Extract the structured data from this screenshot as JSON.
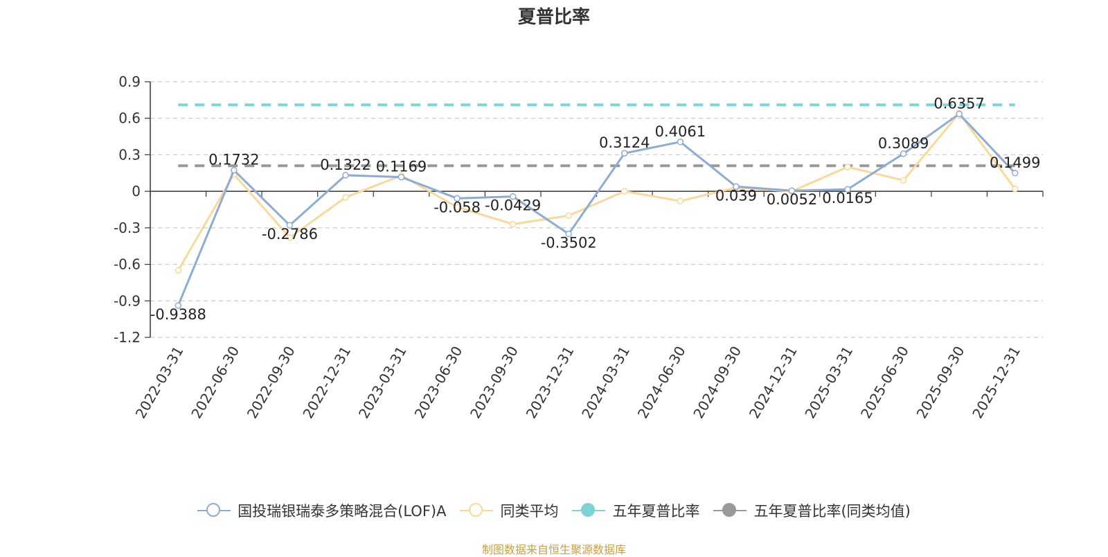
{
  "chart_data": {
    "type": "line",
    "title": "夏普比率",
    "categories": [
      "2022-03-31",
      "2022-06-30",
      "2022-09-30",
      "2022-12-31",
      "2023-03-31",
      "2023-06-30",
      "2023-09-30",
      "2023-12-31",
      "2024-03-31",
      "2024-06-30",
      "2024-09-30",
      "2024-12-31",
      "2025-03-31",
      "2025-06-30",
      "2025-09-30",
      "2025-12-31"
    ],
    "ylim": [
      -1.2,
      0.9
    ],
    "yticks": [
      0.9,
      0.6,
      0.3,
      0,
      -0.3,
      -0.6,
      -0.9,
      -1.2
    ],
    "ytick_labels": [
      "0.9",
      "0.6",
      "0.3",
      "0",
      "-0.3",
      "-0.6",
      "-0.9",
      "-1.2"
    ],
    "grid": true,
    "legend_position": "bottom",
    "series": [
      {
        "name": "国投瑞银瑞泰多策略混合(LOF)A",
        "color": "#8eabd4",
        "values": [
          -0.9388,
          0.1732,
          -0.2786,
          0.1322,
          0.1169,
          -0.058,
          -0.0429,
          -0.3502,
          0.3124,
          0.4061,
          0.039,
          0.0052,
          0.0165,
          0.3089,
          0.6357,
          0.1499
        ],
        "labels": [
          "-0.9388",
          "0.1732",
          "-0.2786",
          "0.1322",
          "0.1169",
          "-0.058",
          "-0.0429",
          "-0.3502",
          "0.3124",
          "0.4061",
          "0.039",
          "0.0052",
          "0.0165",
          "0.3089",
          "0.6357",
          "0.1499"
        ]
      },
      {
        "name": "同类平均",
        "color": "#f9d89a",
        "values": [
          -0.65,
          0.14,
          -0.38,
          -0.05,
          0.13,
          -0.13,
          -0.27,
          -0.2,
          0.0,
          -0.08,
          0.03,
          0.0,
          0.2,
          0.09,
          0.64,
          0.02
        ]
      },
      {
        "name": "五年夏普比率",
        "color": "#7fd3d5",
        "value": 0.71,
        "style": "dashed"
      },
      {
        "name": "五年夏普比率(同类均值)",
        "color": "#999999",
        "value": 0.21,
        "style": "dashed"
      }
    ]
  },
  "source": "制图数据来自恒生聚源数据库"
}
